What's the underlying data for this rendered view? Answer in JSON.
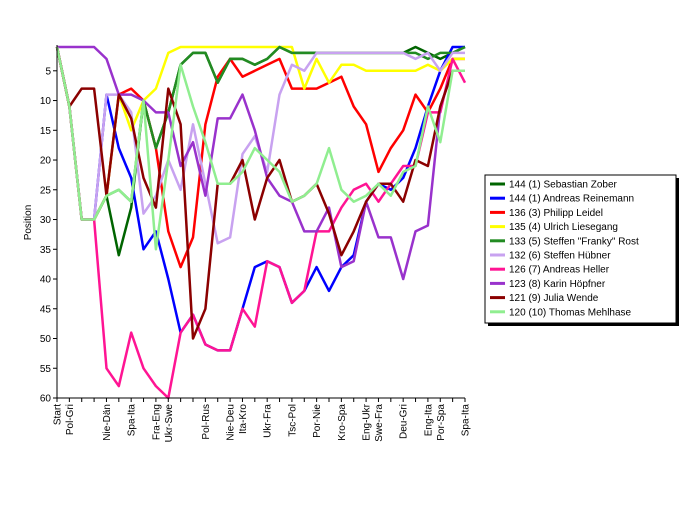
{
  "chart_data": {
    "type": "line",
    "ylabel": "Position",
    "y_inverted": true,
    "ylim": [
      1,
      60
    ],
    "y_ticks": [
      5,
      10,
      15,
      20,
      25,
      30,
      35,
      40,
      45,
      50,
      55,
      60
    ],
    "grid": false,
    "legend_placement": "right",
    "x": [
      "Start",
      "Pol-Gri",
      "",
      "",
      "Nie-Dän",
      "",
      "Spa-Ita",
      "",
      "Fra-Eng",
      "Ukr-Swe",
      "",
      "",
      "Pol-Rus",
      "",
      "Nie-Deu",
      "Ita-Kro",
      "",
      "Ukr-Fra",
      "",
      "Tsc-Pol",
      "",
      "Por-Nie",
      "",
      "Kro-Spa",
      "",
      "Eng-Ukr",
      "Swe-Fra",
      "",
      "Deu-Gri",
      "",
      "Eng-Ita",
      "Por-Spa",
      "",
      "Spa-Ita"
    ],
    "series": [
      {
        "name": "144 (1) Sebastian Zober",
        "color": "#006400",
        "values": [
          1,
          11,
          30,
          30,
          26,
          36,
          28,
          10,
          18,
          12,
          4,
          2,
          2,
          7,
          3,
          3,
          4,
          3,
          1,
          2,
          2,
          2,
          2,
          2,
          2,
          2,
          2,
          2,
          2,
          1,
          2,
          3,
          2,
          1
        ]
      },
      {
        "name": "144 (1) Andreas Reinemann",
        "color": "#0000ff",
        "values": [
          1,
          11,
          30,
          30,
          9,
          18,
          23,
          35,
          32,
          40,
          49,
          46,
          51,
          52,
          52,
          45,
          38,
          37,
          38,
          44,
          42,
          38,
          42,
          38,
          36,
          27,
          24,
          25,
          23,
          18,
          11,
          5,
          1,
          1
        ]
      },
      {
        "name": "136 (3) Philipp Leidel",
        "color": "#ff0000",
        "values": [
          1,
          11,
          30,
          30,
          26,
          9,
          8,
          10,
          18,
          32,
          38,
          33,
          14,
          6,
          3,
          6,
          5,
          4,
          3,
          8,
          8,
          8,
          7,
          6,
          11,
          14,
          22,
          18,
          15,
          9,
          12,
          8,
          3,
          3
        ]
      },
      {
        "name": "135 (4) Ulrich Liesegang",
        "color": "#ffff00",
        "values": [
          1,
          11,
          30,
          30,
          26,
          9,
          15,
          10,
          8,
          2,
          1,
          1,
          1,
          1,
          1,
          1,
          1,
          1,
          1,
          1,
          8,
          3,
          7,
          4,
          4,
          5,
          5,
          5,
          5,
          5,
          4,
          5,
          3,
          3
        ]
      },
      {
        "name": "133 (5) Steffen \"Franky\" Rost",
        "color": "#228b22",
        "values": [
          1,
          11,
          30,
          30,
          26,
          25,
          27,
          10,
          18,
          12,
          4,
          2,
          2,
          7,
          3,
          3,
          4,
          3,
          1,
          2,
          2,
          2,
          2,
          2,
          2,
          2,
          2,
          2,
          2,
          2,
          3,
          2,
          2,
          1
        ]
      },
      {
        "name": "132 (6) Steffen Hübner",
        "color": "#c8a2f0",
        "values": [
          1,
          11,
          30,
          30,
          9,
          9,
          12,
          29,
          26,
          20,
          25,
          14,
          24,
          34,
          33,
          19,
          16,
          22,
          9,
          4,
          5,
          2,
          2,
          2,
          2,
          2,
          2,
          2,
          2,
          3,
          2,
          5,
          2,
          2
        ]
      },
      {
        "name": "126 (7) Andreas Heller",
        "color": "#ff1493",
        "values": [
          1,
          11,
          30,
          30,
          55,
          58,
          49,
          55,
          58,
          60,
          49,
          46,
          51,
          52,
          52,
          45,
          48,
          37,
          38,
          44,
          42,
          32,
          32,
          28,
          25,
          24,
          27,
          24,
          21,
          21,
          12,
          12,
          3,
          7
        ]
      },
      {
        "name": "123 (8) Karin Höpfner",
        "color": "#9932cc",
        "values": [
          1,
          1,
          1,
          1,
          3,
          9,
          9,
          10,
          12,
          12,
          21,
          17,
          26,
          13,
          13,
          9,
          15,
          23,
          26,
          27,
          32,
          32,
          28,
          38,
          37,
          27,
          33,
          33,
          40,
          32,
          31,
          11,
          5,
          5
        ]
      },
      {
        "name": "121 (9) Julia Wende",
        "color": "#8b0000",
        "values": [
          1,
          11,
          8,
          8,
          26,
          9,
          13,
          23,
          28,
          8,
          14,
          50,
          45,
          24,
          24,
          20,
          30,
          23,
          20,
          27,
          26,
          24,
          29,
          36,
          32,
          27,
          24,
          24,
          27,
          20,
          21,
          11,
          5,
          5
        ]
      },
      {
        "name": "120 (10) Thomas Mehlhase",
        "color": "#90ee90",
        "values": [
          1,
          11,
          30,
          30,
          26,
          25,
          27,
          10,
          35,
          20,
          4,
          11,
          17,
          24,
          24,
          22,
          18,
          20,
          22,
          27,
          26,
          24,
          18,
          25,
          27,
          26,
          24,
          26,
          22,
          21,
          11,
          17,
          5,
          5
        ]
      }
    ]
  }
}
